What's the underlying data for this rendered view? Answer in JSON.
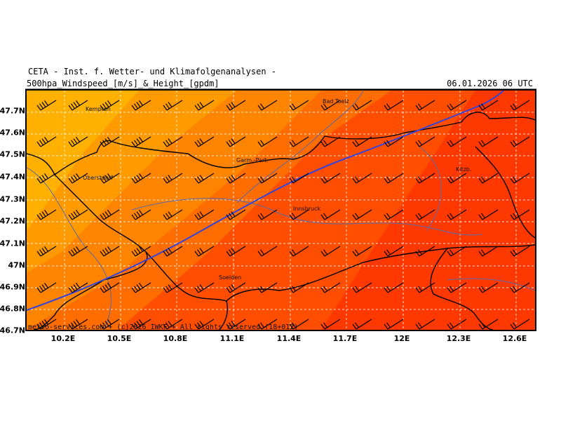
{
  "header": {
    "title": "CETA - Inst. f. Wetter- und Klimafolgenanalysen -",
    "subtitle": "500hpa_Windspeed_[m/s]_&_Height_[gpdm]",
    "date": "06.01.2026 06 UTC"
  },
  "axes": {
    "lat_labels": [
      "47.7N",
      "47.6N",
      "47.5N",
      "47.4N",
      "47.3N",
      "47.2N",
      "47.1N",
      "47N",
      "46.9N",
      "46.8N",
      "46.7N"
    ],
    "lon_labels": [
      "10.2E",
      "10.5E",
      "10.8E",
      "11.1E",
      "11.4E",
      "11.7E",
      "12E",
      "12.3E",
      "12.6E"
    ]
  },
  "cities": [
    {
      "name": "Kempten"
    },
    {
      "name": "Bad Toelz"
    },
    {
      "name": "Garm.-Part."
    },
    {
      "name": "Oberstdorf"
    },
    {
      "name": "Kitzb."
    },
    {
      "name": "Innsbruck"
    },
    {
      "name": "Soelden"
    }
  ],
  "footer": {
    "credit": "meteo-services.com + (c)2026 IWKF + All rights reserved (18+012)"
  },
  "colors": {
    "band_1": "#ffb000",
    "band_2": "#ff9a00",
    "band_3": "#ff8400",
    "band_4": "#ff6c00",
    "band_5": "#ff4e00",
    "band_6": "#ff3800",
    "height_contour": "#3344dd",
    "borders": "#000000",
    "rivers": "#5a6aa8",
    "grid": "#ffffff"
  }
}
